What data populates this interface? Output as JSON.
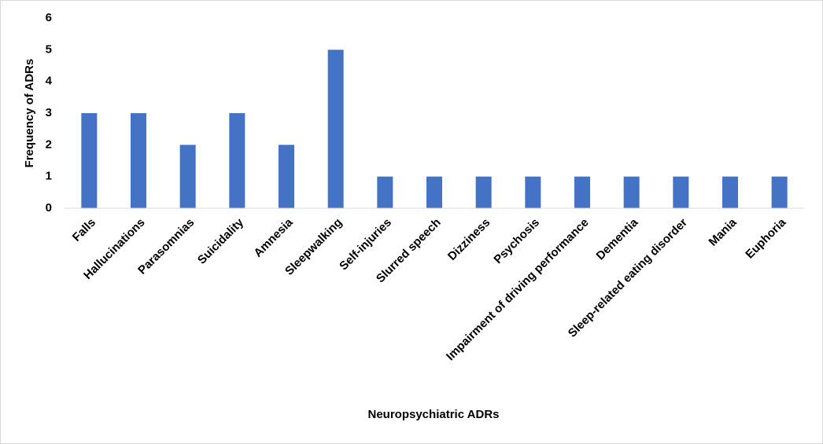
{
  "chart_data": {
    "type": "bar",
    "x_label": "Neuropsychiatric ADRs",
    "y_label": "Frequency of ADRs",
    "categories": [
      "Falls",
      "Hallucinations",
      "Parasomnias",
      "Suicidality",
      "Amnesia",
      "Sleepwalking",
      "Self-injuries",
      "Slurred speech",
      "Dizziness",
      "Psychosis",
      "Impairment of driving performance",
      "Dementia",
      "Sleep-related eating disorder",
      "Mania",
      "Euphoria"
    ],
    "values": [
      3,
      3,
      2,
      3,
      2,
      5,
      1,
      1,
      1,
      1,
      1,
      1,
      1,
      1,
      1
    ],
    "color": "#4472c4",
    "ylim": [
      0,
      6
    ],
    "yticks": [
      0,
      1,
      2,
      3,
      4,
      5,
      6
    ],
    "grid": false
  }
}
